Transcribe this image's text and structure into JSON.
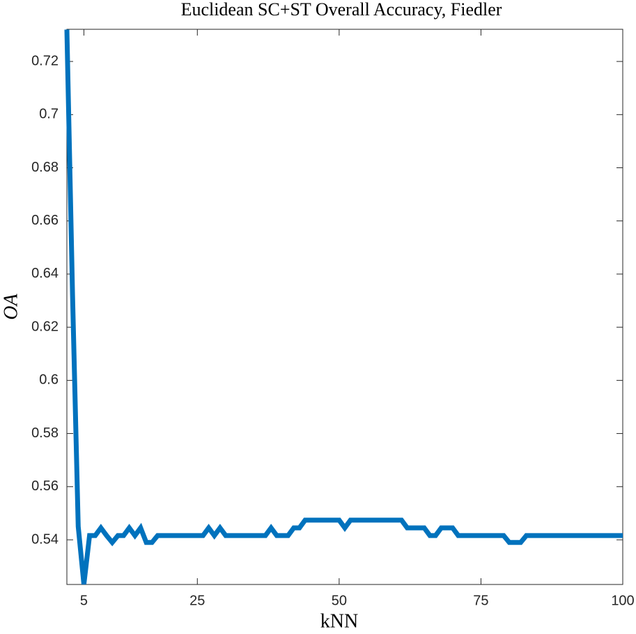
{
  "chart_data": {
    "type": "line",
    "title": "Euclidean SC+ST Overall Accuracy, Fiedler",
    "xlabel": "kNN",
    "ylabel": "OA",
    "x": [
      2,
      3,
      4,
      5,
      6,
      7,
      8,
      9,
      10,
      11,
      12,
      13,
      14,
      15,
      16,
      17,
      18,
      19,
      20,
      21,
      22,
      23,
      24,
      25,
      26,
      27,
      28,
      29,
      30,
      31,
      32,
      33,
      34,
      35,
      36,
      37,
      38,
      39,
      40,
      41,
      42,
      43,
      44,
      45,
      46,
      47,
      48,
      49,
      50,
      51,
      52,
      53,
      54,
      55,
      56,
      57,
      58,
      59,
      60,
      61,
      62,
      63,
      64,
      65,
      66,
      67,
      68,
      69,
      70,
      71,
      72,
      73,
      74,
      75,
      76,
      77,
      78,
      79,
      80,
      81,
      82,
      83,
      84,
      85,
      86,
      87,
      88,
      89,
      90,
      91,
      92,
      93,
      94,
      95,
      96,
      97,
      98,
      99,
      100
    ],
    "series": [
      {
        "name": "OA",
        "color": "#0072bd",
        "values": [
          0.732,
          0.632,
          0.545,
          0.5233,
          0.5416,
          0.5416,
          0.5445,
          0.5416,
          0.539,
          0.5416,
          0.5416,
          0.5445,
          0.5416,
          0.5445,
          0.539,
          0.539,
          0.5416,
          0.5416,
          0.5416,
          0.5416,
          0.5416,
          0.5416,
          0.5416,
          0.5416,
          0.5416,
          0.5445,
          0.5416,
          0.5445,
          0.5416,
          0.5416,
          0.5416,
          0.5416,
          0.5416,
          0.5416,
          0.5416,
          0.5416,
          0.5445,
          0.5416,
          0.5416,
          0.5416,
          0.5445,
          0.5445,
          0.5474,
          0.5474,
          0.5474,
          0.5474,
          0.5474,
          0.5474,
          0.5474,
          0.5445,
          0.5474,
          0.5474,
          0.5474,
          0.5474,
          0.5474,
          0.5474,
          0.5474,
          0.5474,
          0.5474,
          0.5474,
          0.5445,
          0.5445,
          0.5445,
          0.5445,
          0.5416,
          0.5416,
          0.5445,
          0.5445,
          0.5445,
          0.5416,
          0.5416,
          0.5416,
          0.5416,
          0.5416,
          0.5416,
          0.5416,
          0.5416,
          0.5416,
          0.539,
          0.539,
          0.539,
          0.5416,
          0.5416,
          0.5416,
          0.5416,
          0.5416,
          0.5416,
          0.5416,
          0.5416,
          0.5416,
          0.5416,
          0.5416,
          0.5416,
          0.5416,
          0.5416,
          0.5416,
          0.5416,
          0.5416,
          0.5416
        ]
      }
    ],
    "xlim": [
      2,
      100
    ],
    "ylim": [
      0.5232,
      0.7321
    ],
    "xticks": [
      5,
      25,
      50,
      75,
      100
    ],
    "yticks": [
      0.54,
      0.56,
      0.58,
      0.6,
      0.62,
      0.64,
      0.66,
      0.68,
      0.7,
      0.72
    ]
  }
}
